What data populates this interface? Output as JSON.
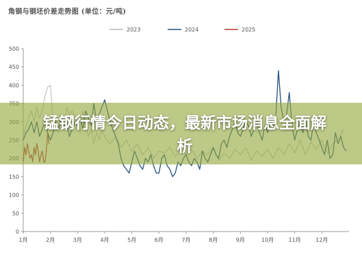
{
  "overlay": {
    "headline": "锰钢行情今日动态，最新市场消息全面解析",
    "color": "#94a83e"
  },
  "chart_data": {
    "type": "line",
    "title": "角钢与钢坯价差走势图 (单位：元/吨)",
    "xlabel": "",
    "ylabel": "",
    "x_ticks": [
      "1月",
      "2月",
      "3月",
      "4月",
      "5月",
      "6月",
      "7月",
      "8月",
      "9月",
      "10月",
      "11月",
      "12月"
    ],
    "y_ticks": [
      0,
      50,
      100,
      150,
      200,
      250,
      300,
      350,
      400,
      450,
      500
    ],
    "xlim": [
      1,
      13
    ],
    "ylim": [
      0,
      500
    ],
    "grid": false,
    "legend_position": "top-center",
    "series": [
      {
        "name": "2023",
        "color": "#b8b8b8",
        "x": [
          1.0,
          1.1,
          1.2,
          1.3,
          1.4,
          1.5,
          1.6,
          1.7,
          1.8,
          1.9,
          2.0,
          2.1,
          2.2,
          2.3,
          2.4,
          2.5,
          2.6,
          2.7,
          2.8,
          2.9,
          3.0,
          3.1,
          3.2,
          3.3,
          3.4,
          3.5,
          3.6,
          3.7,
          3.8,
          3.9,
          4.0,
          4.2,
          4.4,
          4.6,
          4.8,
          5.0,
          5.2,
          5.4,
          5.6,
          5.8,
          6.0,
          6.2,
          6.4,
          6.6,
          6.8,
          7.0,
          7.2,
          7.4,
          7.6,
          7.8,
          8.0,
          8.2,
          8.4,
          8.6,
          8.8,
          9.0,
          9.2,
          9.4,
          9.6,
          9.8,
          10.0,
          10.2,
          10.4,
          10.6,
          10.8,
          11.0,
          11.2,
          11.4,
          11.6,
          11.8,
          12.0,
          12.2,
          12.4,
          12.6,
          12.8
        ],
        "values": [
          260,
          290,
          310,
          330,
          300,
          340,
          310,
          330,
          370,
          395,
          400,
          300,
          280,
          270,
          300,
          290,
          340,
          320,
          330,
          310,
          300,
          270,
          330,
          290,
          260,
          280,
          240,
          270,
          250,
          280,
          260,
          240,
          260,
          230,
          250,
          220,
          240,
          210,
          230,
          200,
          220,
          215,
          230,
          205,
          225,
          210,
          225,
          200,
          220,
          210,
          230,
          195,
          215,
          200,
          225,
          210,
          230,
          195,
          220,
          205,
          225,
          200,
          230,
          210,
          240,
          215,
          250,
          210,
          245,
          225,
          250,
          215,
          240,
          250,
          280
        ]
      },
      {
        "name": "2024",
        "color": "#244f7d",
        "x": [
          1.0,
          1.1,
          1.2,
          1.3,
          1.4,
          1.5,
          1.6,
          1.7,
          1.8,
          1.9,
          2.0,
          2.1,
          2.2,
          2.3,
          2.4,
          2.5,
          2.6,
          2.7,
          2.8,
          2.9,
          3.0,
          3.1,
          3.2,
          3.3,
          3.4,
          3.5,
          3.6,
          3.7,
          3.8,
          3.9,
          4.0,
          4.1,
          4.2,
          4.3,
          4.4,
          4.5,
          4.6,
          4.7,
          4.8,
          4.9,
          5.0,
          5.1,
          5.2,
          5.3,
          5.4,
          5.5,
          5.6,
          5.7,
          5.8,
          5.9,
          6.0,
          6.1,
          6.2,
          6.3,
          6.4,
          6.5,
          6.6,
          6.7,
          6.8,
          6.9,
          7.0,
          7.1,
          7.2,
          7.3,
          7.4,
          7.5,
          7.6,
          7.7,
          7.8,
          7.9,
          8.0,
          8.1,
          8.2,
          8.3,
          8.4,
          8.5,
          8.6,
          8.7,
          8.8,
          8.9,
          9.0,
          9.1,
          9.2,
          9.3,
          9.4,
          9.5,
          9.6,
          9.7,
          9.8,
          9.9,
          10.0,
          10.1,
          10.2,
          10.3,
          10.4,
          10.5,
          10.6,
          10.7,
          10.8,
          10.9,
          11.0,
          11.1,
          11.2,
          11.3,
          11.4,
          11.5,
          11.6,
          11.7,
          11.8,
          11.9,
          12.0,
          12.1,
          12.2,
          12.3,
          12.4,
          12.5,
          12.6,
          12.7,
          12.8,
          12.9
        ],
        "values": [
          250,
          270,
          280,
          300,
          270,
          300,
          260,
          280,
          300,
          270,
          250,
          270,
          300,
          280,
          320,
          290,
          300,
          260,
          280,
          300,
          290,
          310,
          280,
          330,
          310,
          290,
          350,
          300,
          320,
          340,
          360,
          330,
          300,
          280,
          260,
          240,
          200,
          180,
          170,
          160,
          190,
          220,
          200,
          180,
          170,
          200,
          190,
          210,
          180,
          160,
          160,
          200,
          210,
          180,
          170,
          150,
          160,
          190,
          180,
          200,
          210,
          190,
          180,
          200,
          190,
          170,
          220,
          200,
          190,
          210,
          230,
          210,
          200,
          240,
          250,
          230,
          260,
          280,
          300,
          270,
          260,
          280,
          300,
          290,
          260,
          280,
          300,
          270,
          250,
          290,
          270,
          300,
          290,
          310,
          440,
          340,
          300,
          320,
          380,
          290,
          250,
          280,
          300,
          270,
          300,
          260,
          250,
          300,
          270,
          250,
          230,
          210,
          250,
          200,
          210,
          270,
          240,
          260,
          230,
          220
        ]
      },
      {
        "name": "2025",
        "color": "#b23a3a",
        "x": [
          1.0,
          1.05,
          1.1,
          1.15,
          1.2,
          1.25,
          1.3,
          1.35,
          1.4,
          1.45,
          1.5,
          1.55,
          1.6,
          1.65,
          1.7,
          1.75,
          1.8,
          1.85,
          1.9,
          1.95
        ],
        "values": [
          190,
          230,
          210,
          240,
          220,
          200,
          210,
          190,
          230,
          210,
          240,
          220,
          190,
          210,
          220,
          190,
          190,
          220,
          270,
          240
        ]
      }
    ]
  }
}
